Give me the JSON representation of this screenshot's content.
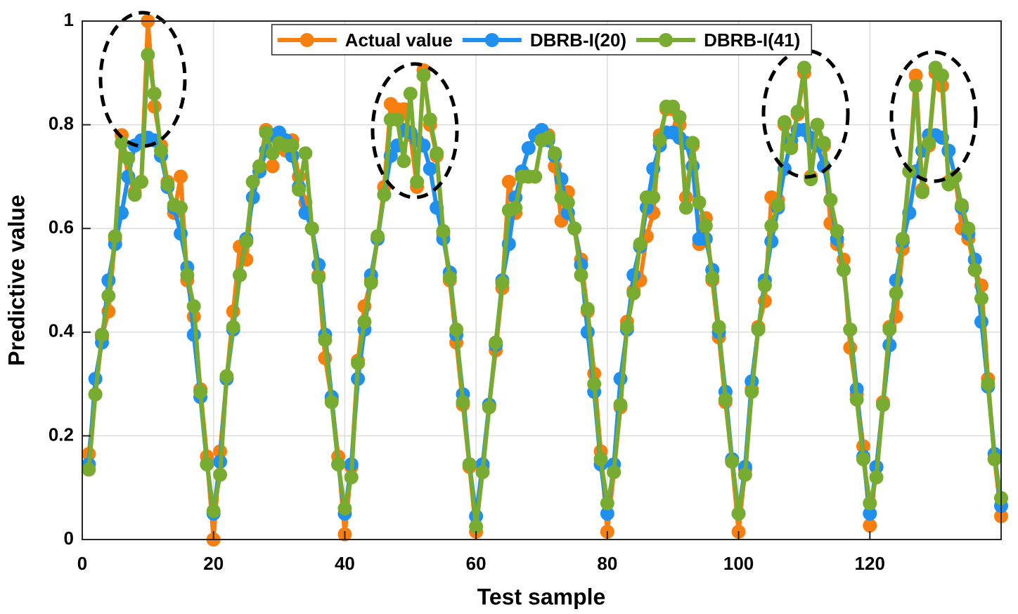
{
  "chart_data": {
    "type": "line",
    "x_label": "Test sample",
    "y_label": "Predictive value",
    "x": [
      1,
      2,
      3,
      4,
      5,
      6,
      7,
      8,
      9,
      10,
      11,
      12,
      13,
      14,
      15,
      16,
      17,
      18,
      19,
      20,
      21,
      22,
      23,
      24,
      25,
      26,
      27,
      28,
      29,
      30,
      31,
      32,
      33,
      34,
      35,
      36,
      37,
      38,
      39,
      40,
      41,
      42,
      43,
      44,
      45,
      46,
      47,
      48,
      49,
      50,
      51,
      52,
      53,
      54,
      55,
      56,
      57,
      58,
      59,
      60,
      61,
      62,
      63,
      64,
      65,
      66,
      67,
      68,
      69,
      70,
      71,
      72,
      73,
      74,
      75,
      76,
      77,
      78,
      79,
      80,
      81,
      82,
      83,
      84,
      85,
      86,
      87,
      88,
      89,
      90,
      91,
      92,
      93,
      94,
      95,
      96,
      97,
      98,
      99,
      100,
      101,
      102,
      103,
      104,
      105,
      106,
      107,
      108,
      109,
      110,
      111,
      112,
      113,
      114,
      115,
      116,
      117,
      118,
      119,
      120,
      121,
      122,
      123,
      124,
      125,
      126,
      127,
      128,
      129,
      130,
      131,
      132,
      133,
      134,
      135,
      136,
      137,
      138,
      139,
      140
    ],
    "series": [
      {
        "name": "Actual value",
        "color": "#f77f0f",
        "values": [
          0.165,
          0.28,
          0.39,
          0.44,
          0.58,
          0.78,
          0.7,
          0.67,
          0.69,
          1.0,
          0.835,
          0.76,
          0.69,
          0.63,
          0.7,
          0.5,
          0.43,
          0.29,
          0.16,
          0.0,
          0.17,
          0.31,
          0.44,
          0.565,
          0.54,
          0.69,
          0.72,
          0.79,
          0.72,
          0.78,
          0.75,
          0.77,
          0.7,
          0.65,
          0.6,
          0.51,
          0.35,
          0.27,
          0.16,
          0.01,
          0.14,
          0.345,
          0.45,
          0.5,
          0.58,
          0.68,
          0.84,
          0.83,
          0.83,
          0.78,
          0.68,
          0.905,
          0.8,
          0.74,
          0.59,
          0.5,
          0.38,
          0.26,
          0.14,
          0.015,
          0.14,
          0.26,
          0.365,
          0.485,
          0.69,
          0.63,
          0.7,
          0.7,
          0.7,
          0.77,
          0.78,
          0.72,
          0.615,
          0.67,
          0.6,
          0.54,
          0.44,
          0.32,
          0.17,
          0.015,
          0.13,
          0.255,
          0.42,
          0.48,
          0.5,
          0.585,
          0.63,
          0.78,
          0.83,
          0.83,
          0.8,
          0.66,
          0.76,
          0.57,
          0.62,
          0.5,
          0.39,
          0.265,
          0.15,
          0.015,
          0.135,
          0.29,
          0.41,
          0.46,
          0.66,
          0.655,
          0.8,
          0.76,
          0.82,
          0.9,
          0.7,
          0.8,
          0.76,
          0.61,
          0.57,
          0.54,
          0.37,
          0.28,
          0.18,
          0.027,
          0.14,
          0.265,
          0.41,
          0.43,
          0.56,
          0.71,
          0.895,
          0.675,
          0.76,
          0.9,
          0.875,
          0.69,
          0.7,
          0.6,
          0.58,
          0.52,
          0.49,
          0.31,
          0.155,
          0.045
        ]
      },
      {
        "name": "DBRB-I(20)",
        "color": "#1f8ff0",
        "values": [
          0.145,
          0.31,
          0.38,
          0.5,
          0.57,
          0.63,
          0.7,
          0.76,
          0.77,
          0.775,
          0.77,
          0.74,
          0.68,
          0.64,
          0.59,
          0.525,
          0.395,
          0.275,
          0.145,
          0.05,
          0.15,
          0.31,
          0.405,
          0.51,
          0.58,
          0.66,
          0.71,
          0.75,
          0.78,
          0.785,
          0.77,
          0.74,
          0.68,
          0.63,
          0.6,
          0.53,
          0.395,
          0.275,
          0.145,
          0.05,
          0.145,
          0.31,
          0.405,
          0.51,
          0.58,
          0.665,
          0.74,
          0.76,
          0.79,
          0.785,
          0.77,
          0.76,
          0.715,
          0.64,
          0.58,
          0.515,
          0.395,
          0.28,
          0.145,
          0.045,
          0.145,
          0.26,
          0.375,
          0.5,
          0.57,
          0.66,
          0.71,
          0.755,
          0.78,
          0.79,
          0.77,
          0.74,
          0.695,
          0.63,
          0.6,
          0.53,
          0.4,
          0.285,
          0.145,
          0.05,
          0.145,
          0.31,
          0.405,
          0.51,
          0.565,
          0.64,
          0.715,
          0.76,
          0.785,
          0.785,
          0.775,
          0.765,
          0.72,
          0.58,
          0.58,
          0.52,
          0.4,
          0.285,
          0.155,
          0.05,
          0.14,
          0.305,
          0.405,
          0.5,
          0.575,
          0.64,
          0.715,
          0.77,
          0.79,
          0.79,
          0.775,
          0.76,
          0.72,
          0.655,
          0.58,
          0.52,
          0.405,
          0.29,
          0.16,
          0.05,
          0.14,
          0.26,
          0.375,
          0.5,
          0.575,
          0.63,
          0.71,
          0.75,
          0.78,
          0.78,
          0.775,
          0.75,
          0.7,
          0.64,
          0.59,
          0.54,
          0.42,
          0.295,
          0.165,
          0.065
        ]
      },
      {
        "name": "DBRB-I(41)",
        "color": "#77ac30",
        "values": [
          0.135,
          0.28,
          0.395,
          0.47,
          0.585,
          0.765,
          0.735,
          0.665,
          0.69,
          0.935,
          0.86,
          0.75,
          0.685,
          0.645,
          0.64,
          0.51,
          0.45,
          0.285,
          0.145,
          0.055,
          0.125,
          0.315,
          0.41,
          0.51,
          0.575,
          0.69,
          0.72,
          0.785,
          0.745,
          0.765,
          0.76,
          0.76,
          0.675,
          0.745,
          0.6,
          0.505,
          0.385,
          0.265,
          0.145,
          0.06,
          0.12,
          0.34,
          0.42,
          0.495,
          0.585,
          0.665,
          0.81,
          0.81,
          0.73,
          0.86,
          0.69,
          0.895,
          0.81,
          0.745,
          0.595,
          0.505,
          0.405,
          0.265,
          0.145,
          0.025,
          0.13,
          0.255,
          0.38,
          0.495,
          0.635,
          0.64,
          0.7,
          0.7,
          0.7,
          0.77,
          0.775,
          0.745,
          0.66,
          0.65,
          0.6,
          0.51,
          0.445,
          0.3,
          0.155,
          0.07,
          0.13,
          0.26,
          0.41,
          0.475,
          0.57,
          0.66,
          0.66,
          0.77,
          0.835,
          0.835,
          0.815,
          0.64,
          0.765,
          0.65,
          0.605,
          0.505,
          0.41,
          0.27,
          0.15,
          0.05,
          0.125,
          0.285,
          0.405,
          0.49,
          0.605,
          0.645,
          0.805,
          0.755,
          0.825,
          0.91,
          0.695,
          0.8,
          0.765,
          0.655,
          0.595,
          0.52,
          0.405,
          0.27,
          0.155,
          0.07,
          0.12,
          0.26,
          0.405,
          0.475,
          0.58,
          0.71,
          0.875,
          0.67,
          0.765,
          0.91,
          0.895,
          0.685,
          0.7,
          0.645,
          0.6,
          0.52,
          0.465,
          0.3,
          0.155,
          0.08
        ]
      }
    ],
    "xlim": [
      0,
      140
    ],
    "xticks": [
      0,
      20,
      40,
      60,
      80,
      100,
      120
    ],
    "ylim": [
      0,
      1
    ],
    "yticks": [
      0,
      0.2,
      0.4,
      0.6,
      0.8,
      1
    ],
    "grid": true,
    "legend": "top"
  }
}
